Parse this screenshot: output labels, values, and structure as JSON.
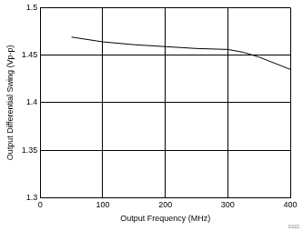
{
  "chart_data": {
    "type": "line",
    "x_label": "Output Frequency (MHz)",
    "y_label": "Output Differential Swing (Vp-p)",
    "annotation": "D022",
    "x": [
      50,
      100,
      150,
      200,
      250,
      300,
      325,
      350,
      400
    ],
    "values": [
      1.469,
      1.464,
      1.461,
      1.459,
      1.457,
      1.456,
      1.453,
      1.448,
      1.435
    ],
    "color": "#000000",
    "xlim": [
      0,
      400
    ],
    "xticks": [
      0,
      100,
      200,
      300,
      400
    ],
    "ylim": [
      1.3,
      1.5
    ],
    "yticks": [
      1.3,
      1.35,
      1.4,
      1.45,
      1.5
    ],
    "grid": true
  }
}
